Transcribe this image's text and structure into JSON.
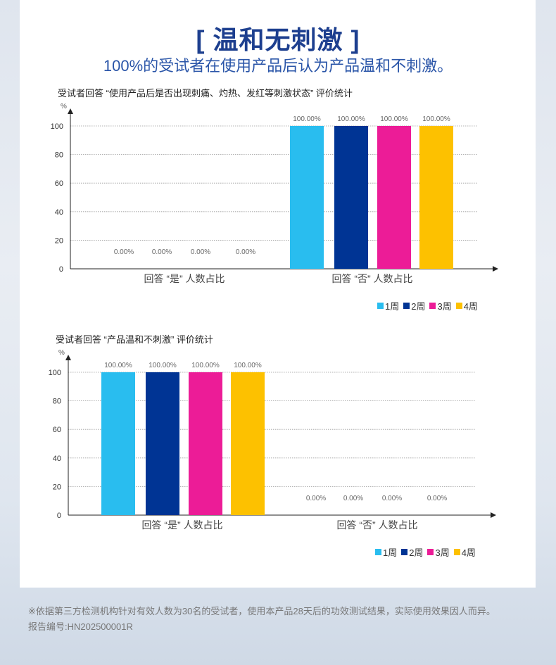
{
  "heading": "[ 温和无刺激 ]",
  "subheading": "100%的受试者在使用产品后认为产品温和不刺激。",
  "legend": [
    {
      "label": "1周",
      "color": "#29bdef"
    },
    {
      "label": "2周",
      "color": "#003494"
    },
    {
      "label": "3周",
      "color": "#ec1c97"
    },
    {
      "label": "4周",
      "color": "#fdc100"
    }
  ],
  "chart_data": [
    {
      "type": "bar",
      "title": "受试者回答 “使用产品后是否出现刺痛、灼热、发红等刺激状态” 评价统计",
      "ylabel": "%",
      "ylim": [
        0,
        100
      ],
      "yticks": [
        "0",
        "20",
        "40",
        "60",
        "80",
        "100"
      ],
      "categories": [
        "回答 “是” 人数占比",
        "回答 “否” 人数占比"
      ],
      "series": [
        {
          "name": "1周",
          "values": [
            0,
            100
          ],
          "labels": [
            "0.00%",
            "100.00%"
          ]
        },
        {
          "name": "2周",
          "values": [
            0,
            100
          ],
          "labels": [
            "0.00%",
            "100.00%"
          ]
        },
        {
          "name": "3周",
          "values": [
            0,
            100
          ],
          "labels": [
            "0.00%",
            "100.00%"
          ]
        },
        {
          "name": "4周",
          "values": [
            0,
            100
          ],
          "labels": [
            "0.00%",
            "100.00%"
          ]
        }
      ],
      "grid": true,
      "legend_position": "bottom-right"
    },
    {
      "type": "bar",
      "title": "受试者回答 “产品温和不刺激” 评价统计",
      "ylabel": "%",
      "ylim": [
        0,
        100
      ],
      "yticks": [
        "0",
        "20",
        "40",
        "60",
        "80",
        "100"
      ],
      "categories": [
        "回答 “是” 人数占比",
        "回答 “否” 人数占比"
      ],
      "series": [
        {
          "name": "1周",
          "values": [
            100,
            0
          ],
          "labels": [
            "100.00%",
            "0.00%"
          ]
        },
        {
          "name": "2周",
          "values": [
            100,
            0
          ],
          "labels": [
            "100.00%",
            "0.00%"
          ]
        },
        {
          "name": "3周",
          "values": [
            100,
            0
          ],
          "labels": [
            "100.00%",
            "0.00%"
          ]
        },
        {
          "name": "4周",
          "values": [
            100,
            0
          ],
          "labels": [
            "100.00%",
            "0.00%"
          ]
        }
      ],
      "grid": true,
      "legend_position": "bottom-right"
    }
  ],
  "footnote": "※依据第三方检测机构针对有效人数为30名的受试者，使用本产品28天后的功效测试结果，实际使用效果因人而异。",
  "report_number": "报告编号:HN202500001R"
}
